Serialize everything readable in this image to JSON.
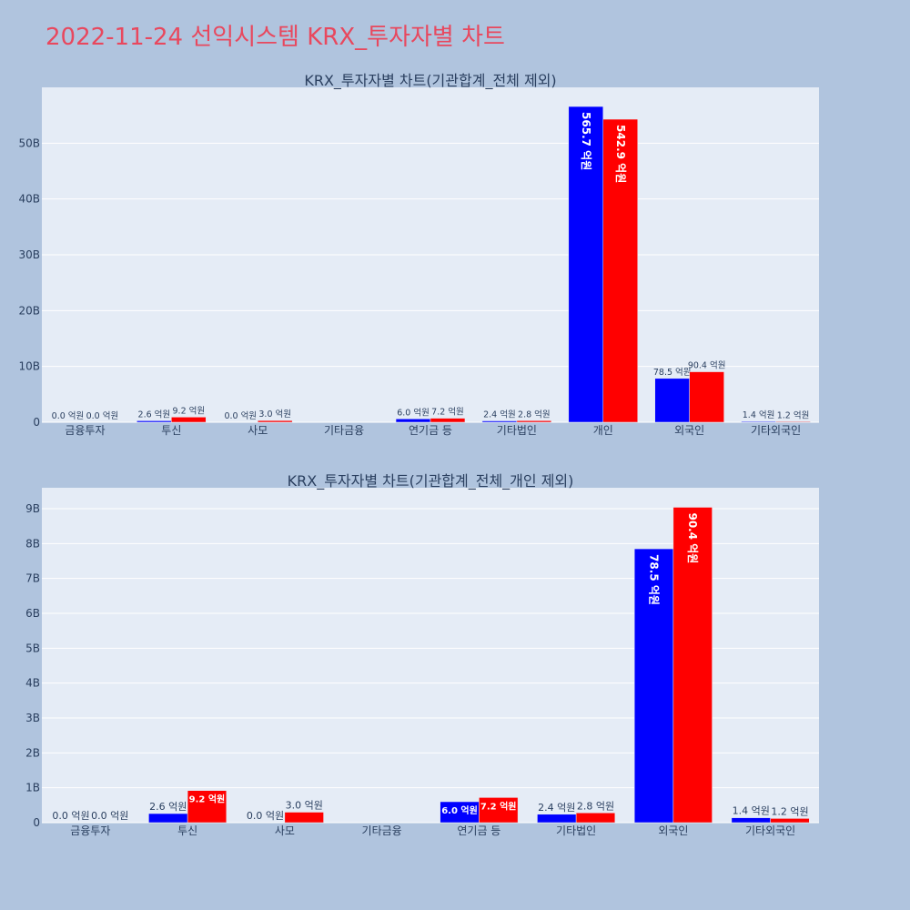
{
  "page": {
    "title": "2022-11-24 선익시스템 KRX_투자자별 차트"
  },
  "colors": {
    "series_a": "#0000ff",
    "series_b": "#ff0000",
    "title": "#e8485e",
    "background": "#b0c4de",
    "plot_bg": "#e5ecf6"
  },
  "chart_data": [
    {
      "type": "bar",
      "title": "KRX_투자자별 차트(기관합계_전체 제외)",
      "xlabel": "",
      "ylabel": "",
      "categories": [
        "금융투자",
        "투신",
        "사모",
        "기타금융",
        "연기금 등",
        "기타법인",
        "개인",
        "외국인",
        "기타외국인"
      ],
      "ylim": [
        0,
        60000000000
      ],
      "yticks": [
        0,
        10000000000,
        20000000000,
        30000000000,
        40000000000,
        50000000000
      ],
      "ytick_labels": [
        "0",
        "10B",
        "20B",
        "30B",
        "40B",
        "50B"
      ],
      "grid": true,
      "legend": "none",
      "series": [
        {
          "values": [
            0,
            260000000,
            0,
            null,
            600000000,
            240000000,
            56570000000,
            7850000000,
            140000000
          ],
          "labels": [
            "0.0 억원",
            "2.6 억원",
            "0.0 억원",
            "",
            "6.0 억원",
            "2.4 억원",
            "565.7 억원",
            "78.5 억원",
            "1.4 억원"
          ]
        },
        {
          "values": [
            0,
            920000000,
            300000000,
            null,
            720000000,
            280000000,
            54290000000,
            9040000000,
            120000000
          ],
          "labels": [
            "0.0 억원",
            "9.2 억원",
            "3.0 억원",
            "",
            "7.2 억원",
            "2.8 억원",
            "542.9 억원",
            "90.4 억원",
            "1.2 억원"
          ]
        }
      ]
    },
    {
      "type": "bar",
      "title": "KRX_투자자별 차트(기관합계_전체_개인 제외)",
      "xlabel": "",
      "ylabel": "",
      "categories": [
        "금융투자",
        "투신",
        "사모",
        "기타금융",
        "연기금 등",
        "기타법인",
        "외국인",
        "기타외국인"
      ],
      "ylim": [
        0,
        9600000000
      ],
      "yticks": [
        0,
        1000000000,
        2000000000,
        3000000000,
        4000000000,
        5000000000,
        6000000000,
        7000000000,
        8000000000,
        9000000000
      ],
      "ytick_labels": [
        "0",
        "1B",
        "2B",
        "3B",
        "4B",
        "5B",
        "6B",
        "7B",
        "8B",
        "9B"
      ],
      "grid": true,
      "legend": "none",
      "series": [
        {
          "values": [
            0,
            260000000,
            0,
            null,
            600000000,
            240000000,
            7850000000,
            140000000
          ],
          "labels": [
            "0.0 억원",
            "2.6 억원",
            "0.0 억원",
            "",
            "6.0 억원",
            "2.4 억원",
            "78.5 억원",
            "1.4 억원"
          ]
        },
        {
          "values": [
            0,
            920000000,
            300000000,
            null,
            720000000,
            280000000,
            9040000000,
            120000000
          ],
          "labels": [
            "0.0 억원",
            "9.2 억원",
            "3.0 억원",
            "",
            "7.2 억원",
            "2.8 억원",
            "90.4 억원",
            "1.2 억원"
          ]
        }
      ]
    }
  ]
}
